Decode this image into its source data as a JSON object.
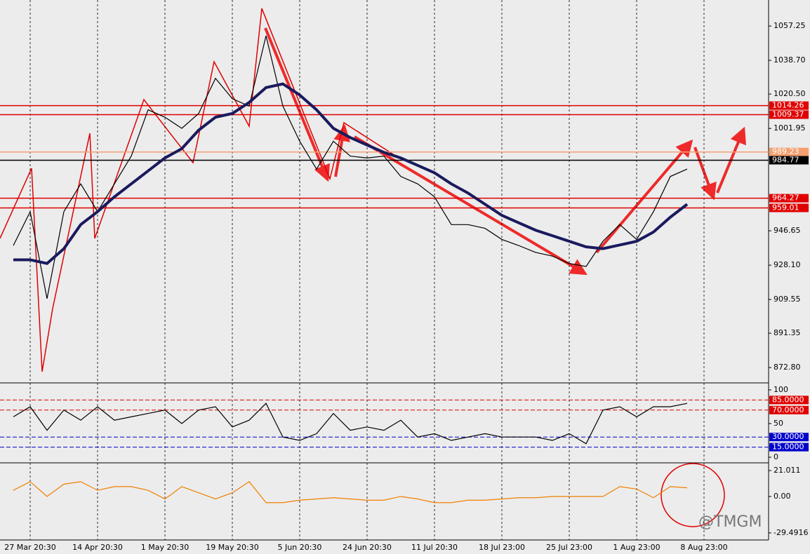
{
  "chart_data": [
    {
      "type": "line",
      "panel": "price",
      "categories": [
        null,
        "27 Mar 20:30",
        null,
        null,
        null,
        "14 Apr 20:30",
        null,
        null,
        null,
        "1 May 20:30",
        null,
        null,
        null,
        "19 May 20:30",
        null,
        null,
        null,
        "5 Jun 20:30",
        null,
        null,
        null,
        "24 Jun 20:30",
        null,
        null,
        null,
        "11 Jul 20:30",
        null,
        null,
        null,
        "18 Jul 23:00",
        null,
        null,
        null,
        "25 Jul 23:00",
        null,
        null,
        null,
        "1 Aug 23:00",
        null,
        null,
        null,
        "8 Aug 23:00"
      ],
      "series": [
        {
          "color": "#000000",
          "values": [
            938.7,
            957,
            910,
            957,
            972,
            957,
            972,
            987,
            1012,
            1008,
            1002,
            1010,
            1029,
            1018,
            1014,
            1052,
            1014,
            995,
            980,
            995,
            987,
            986,
            987,
            976,
            972,
            965,
            950,
            950,
            948,
            942,
            938.7,
            935,
            933,
            929,
            927.4,
            941,
            950,
            942,
            957,
            976,
            980,
            null
          ]
        },
        {
          "color": "#1a1a5e",
          "values": [
            931,
            931,
            929,
            937,
            950,
            957,
            965,
            972,
            979,
            986,
            991,
            1001,
            1008,
            1010,
            1016,
            1024,
            1026,
            1020,
            1012,
            1002,
            997,
            993,
            989,
            986,
            982,
            978,
            972,
            967,
            961,
            955,
            951,
            947,
            944,
            941,
            938,
            937,
            939,
            941,
            946,
            954,
            961,
            null
          ]
        }
      ],
      "ylim": [
        864.9,
        1071.3
      ],
      "yticks": [
        1057.25,
        {
          "value": 1038.7,
          "label": "1038.70"
        },
        {
          "value": 1020.5,
          "label": "1020.50"
        },
        1001.95,
        946.65,
        {
          "value": 928.1,
          "label": "928.10"
        },
        909.55,
        891.35,
        {
          "value": 872.8,
          "label": "872.80"
        }
      ],
      "levels": [
        {
          "value": 1014.26,
          "color": "#e00000"
        },
        {
          "value": 1009.37,
          "color": "#e00000"
        },
        {
          "value": 989.23,
          "color": "#f4a070"
        },
        {
          "value": 984.77,
          "color": "#000000"
        },
        {
          "value": 964.27,
          "color": "#e00000"
        },
        {
          "value": 959.01,
          "color": "#e00000"
        }
      ]
    },
    {
      "type": "line",
      "panel": "stochastic",
      "series": [
        {
          "color": "#000000",
          "values": [
            60,
            75,
            40,
            70,
            55,
            75,
            55,
            60,
            65,
            70,
            50,
            70,
            75,
            45,
            55,
            80,
            30,
            25,
            35,
            65,
            40,
            45,
            40,
            55,
            30,
            35,
            25,
            30,
            35,
            30,
            30,
            30,
            25,
            35,
            20,
            70,
            75,
            60,
            75,
            75,
            80,
            null
          ]
        }
      ],
      "ylim": [
        -3.1,
        108.3
      ],
      "yticks": [
        100,
        50,
        0
      ],
      "levels": [
        {
          "value": 85,
          "label": "85.0000",
          "color": "#e00000"
        },
        {
          "value": 70,
          "label": "70.0000",
          "color": "#e00000"
        },
        {
          "value": 30,
          "label": "30.0000",
          "color": "#0000cc"
        },
        {
          "value": 15,
          "label": "15.0000",
          "color": "#0000cc"
        }
      ]
    },
    {
      "type": "line",
      "panel": "macd",
      "series": [
        {
          "color": "#f08000",
          "values": [
            5,
            12,
            0,
            10,
            12,
            5,
            8,
            8,
            5,
            -2,
            8,
            3,
            -2,
            3,
            12,
            -5,
            -5,
            -3,
            -2,
            -1,
            -2,
            -3,
            -3,
            0,
            -2,
            -5,
            -5,
            -3,
            -3,
            -2,
            -1,
            -1,
            0,
            0,
            0,
            0,
            8,
            6,
            -1,
            8,
            7,
            null
          ]
        }
      ],
      "ylim": [
        -32.4,
        25.55
      ],
      "yticks": [
        21.011,
        {
          "value": 0,
          "label": "0.00"
        },
        -29.4916
      ]
    }
  ],
  "watermark": "@TMGM"
}
